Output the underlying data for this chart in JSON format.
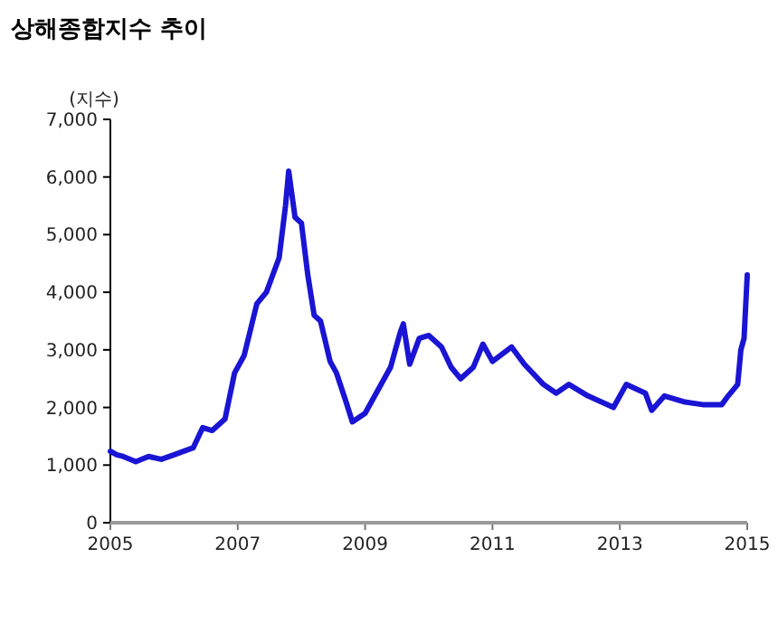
{
  "chart_data": {
    "type": "line",
    "title": "상해종합지수 추이",
    "ylabel": "(지수)",
    "x": [
      2005.0,
      2005.1,
      2005.2,
      2005.4,
      2005.6,
      2005.8,
      2006.0,
      2006.3,
      2006.45,
      2006.6,
      2006.8,
      2006.95,
      2007.1,
      2007.3,
      2007.45,
      2007.55,
      2007.65,
      2007.75,
      2007.8,
      2007.9,
      2008.0,
      2008.1,
      2008.2,
      2008.3,
      2008.45,
      2008.55,
      2008.7,
      2008.8,
      2009.0,
      2009.2,
      2009.4,
      2009.55,
      2009.6,
      2009.7,
      2009.85,
      2010.0,
      2010.2,
      2010.35,
      2010.5,
      2010.7,
      2010.85,
      2011.0,
      2011.3,
      2011.5,
      2011.8,
      2012.0,
      2012.2,
      2012.5,
      2012.9,
      2013.1,
      2013.4,
      2013.5,
      2013.7,
      2014.0,
      2014.3,
      2014.6,
      2014.7,
      2014.85,
      2014.9,
      2014.95,
      2015.0
    ],
    "series": [
      {
        "color": "#1a14d4",
        "values": [
          1240,
          1180,
          1150,
          1060,
          1150,
          1100,
          1180,
          1300,
          1650,
          1600,
          1800,
          2600,
          2900,
          3800,
          4000,
          4300,
          4600,
          5500,
          6100,
          5300,
          5200,
          4300,
          3600,
          3500,
          2800,
          2600,
          2100,
          1750,
          1900,
          2300,
          2700,
          3300,
          3450,
          2750,
          3200,
          3250,
          3050,
          2700,
          2500,
          2700,
          3100,
          2800,
          3050,
          2750,
          2400,
          2250,
          2400,
          2200,
          2000,
          2400,
          2250,
          1950,
          2200,
          2100,
          2050,
          2050,
          2200,
          2400,
          3000,
          3200,
          4300
        ]
      }
    ],
    "xlim": [
      2005,
      2015
    ],
    "xticks": [
      2005,
      2007,
      2009,
      2011,
      2013,
      2015
    ],
    "ylim": [
      0,
      7000
    ],
    "yticks": [
      0,
      {
        "value": 1000,
        "label": "1,000"
      },
      {
        "value": 2000,
        "label": "2,000"
      },
      {
        "value": 3000,
        "label": "3,000"
      },
      {
        "value": 4000,
        "label": "4,000"
      },
      {
        "value": 5000,
        "label": "5,000"
      },
      {
        "value": 6000,
        "label": "6,000"
      },
      {
        "value": 7000,
        "label": "7,000"
      }
    ],
    "grid": false,
    "marker": "none",
    "line_style": "solid"
  }
}
